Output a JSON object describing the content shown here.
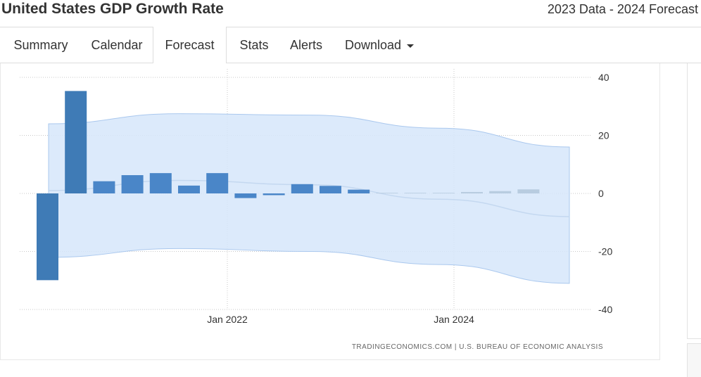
{
  "header": {
    "title": "United States GDP Growth Rate",
    "subtitle": "2023 Data - 2024 Forecast"
  },
  "tabs": [
    {
      "label": "Summary",
      "active": false
    },
    {
      "label": "Calendar",
      "active": false
    },
    {
      "label": "Forecast",
      "active": true
    },
    {
      "label": "Stats",
      "active": false
    },
    {
      "label": "Alerts",
      "active": false
    },
    {
      "label": "Download",
      "active": false,
      "dropdown": true
    }
  ],
  "credit": "TRADINGECONOMICS.COM  |  U.S. BUREAU OF ECONOMIC ANALYSIS",
  "colors": {
    "bar_actual": "#4a86c8",
    "bar_actual_dark": "#3f7bb6",
    "bar_forecast": "#b8cce0",
    "band_fill": "#d6e6fa",
    "band_stroke": "#aac8ee",
    "trend": "#c4d8f0",
    "grid": "#c8c8c8"
  },
  "chart_data": {
    "type": "bar",
    "ylim": [
      -40,
      40
    ],
    "yticks": [
      40,
      20,
      0,
      -20,
      -40
    ],
    "grid": true,
    "x_tick_labels": [
      "Jan 2022",
      "Jan 2024"
    ],
    "series": [
      {
        "kind": "actual",
        "values": [
          -29.9,
          35.3,
          4.2,
          6.3,
          7.0,
          2.7,
          7.0,
          -1.6,
          -0.6,
          3.2,
          2.6,
          1.3
        ]
      },
      {
        "kind": "forecast",
        "values": [
          0.2,
          0.2,
          0.2,
          0.5,
          0.8,
          1.4
        ]
      }
    ],
    "forecast_band": {
      "upper": [
        24,
        27.5,
        27,
        22.5,
        16
      ],
      "lower": [
        -22,
        -19,
        -20,
        -24.5,
        -31
      ],
      "trend": [
        1,
        4.5,
        3,
        -2,
        -8
      ]
    }
  }
}
